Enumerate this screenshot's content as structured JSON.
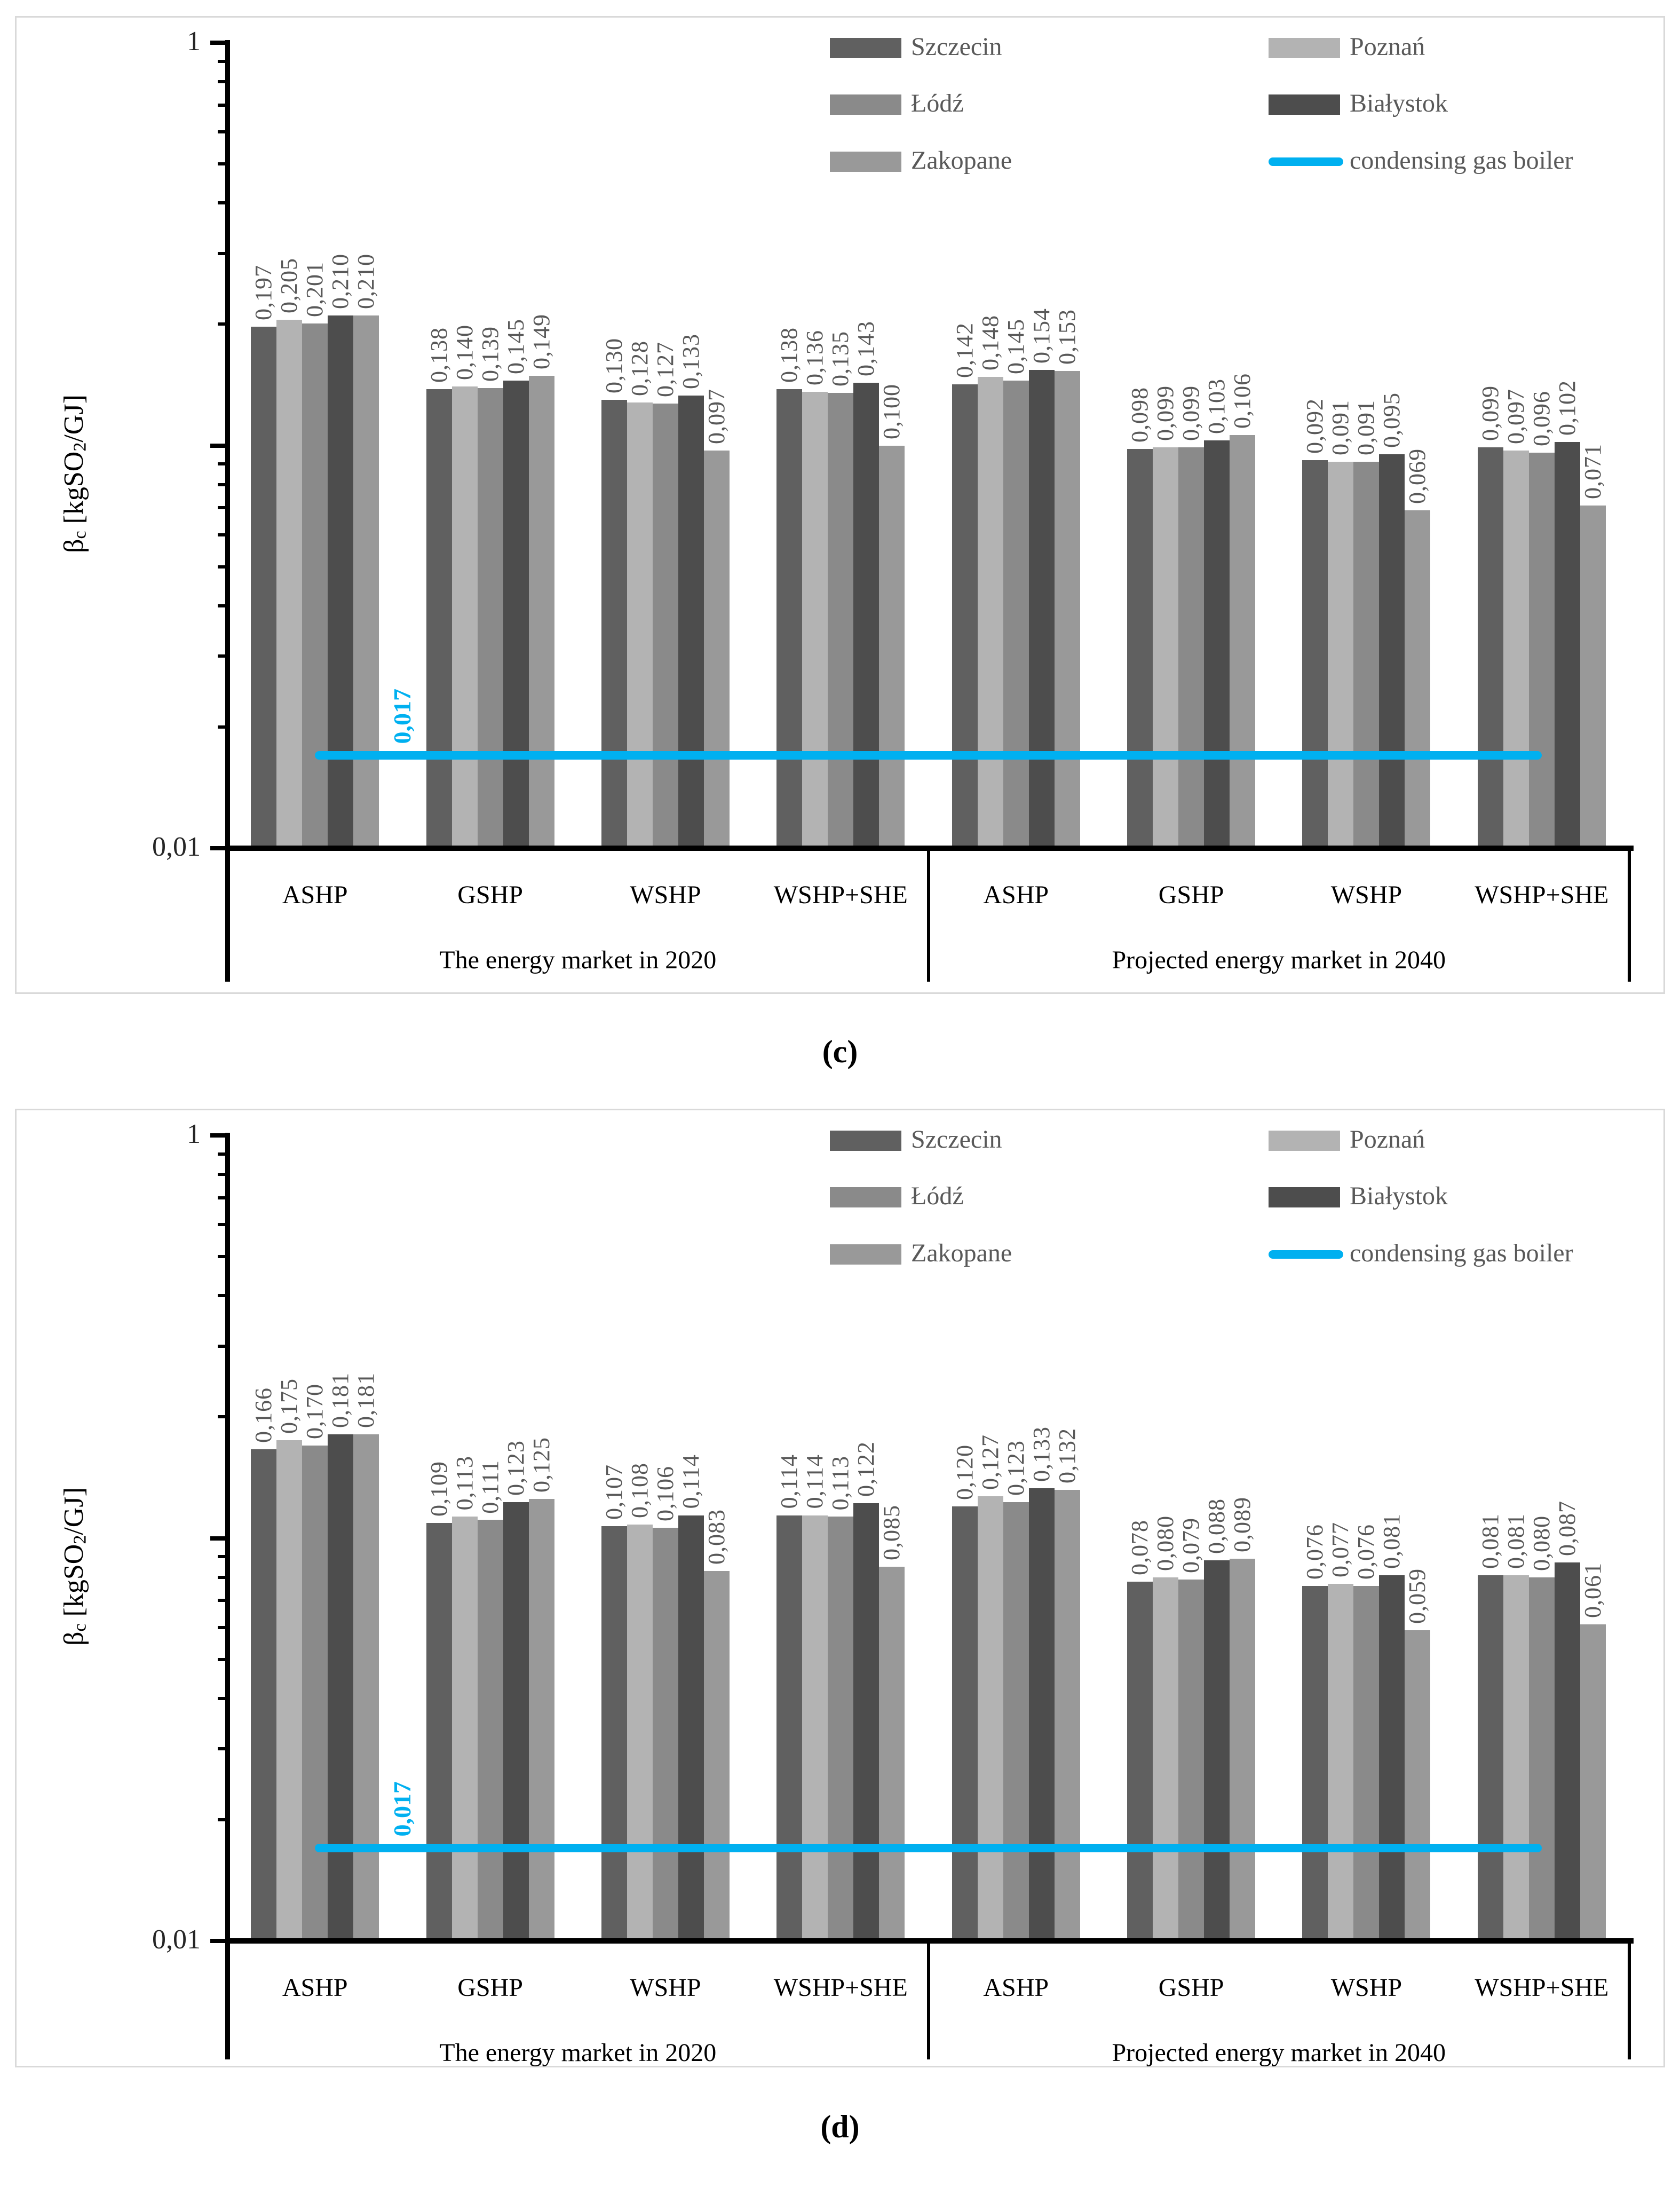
{
  "figure": {
    "captions": {
      "c": "(c)",
      "d": "(d)"
    },
    "y_axis": {
      "title_parts": {
        "beta": "β",
        "beta_sub": "c",
        "mid": " [kgSO",
        "so_sub": "2",
        "end": "/GJ]"
      },
      "top_label": "1",
      "bottom_label": "0,01"
    },
    "colors": {
      "szczecin": "#606060",
      "poznan": "#b3b3b3",
      "lodz": "#8a8a8a",
      "bialystok": "#4d4d4d",
      "zakopane": "#999999",
      "boiler_line": "#00b0f0",
      "data_label": "#595959",
      "panel_border": "#d9d9d9"
    }
  },
  "chart_data": [
    {
      "id": "c",
      "type": "bar",
      "y_scale": "log",
      "ylim": [
        0.01,
        1
      ],
      "ylabel": "βc [kgSO2/GJ]",
      "grid": false,
      "legend_position": "top-right-two-columns",
      "categories": [
        "ASHP",
        "GSHP",
        "WSHP",
        "WSHP+SHE",
        "ASHP",
        "GSHP",
        "WSHP",
        "WSHP+SHE"
      ],
      "group_labels": [
        "The energy market in 2020",
        "Projected energy market in 2040"
      ],
      "series": [
        {
          "name": "Szczecin",
          "color": "#606060",
          "values": [
            0.197,
            0.138,
            0.13,
            0.138,
            0.142,
            0.098,
            0.092,
            0.099
          ]
        },
        {
          "name": "Poznań",
          "color": "#b3b3b3",
          "values": [
            0.205,
            0.14,
            0.128,
            0.136,
            0.148,
            0.099,
            0.091,
            0.097
          ]
        },
        {
          "name": "Łódź",
          "color": "#8a8a8a",
          "values": [
            0.201,
            0.139,
            0.127,
            0.135,
            0.145,
            0.099,
            0.091,
            0.096
          ]
        },
        {
          "name": "Białystok",
          "color": "#4d4d4d",
          "values": [
            0.21,
            0.145,
            0.133,
            0.143,
            0.154,
            0.103,
            0.095,
            0.102
          ]
        },
        {
          "name": "Zakopane",
          "color": "#999999",
          "values": [
            0.21,
            0.149,
            0.097,
            0.1,
            0.153,
            0.106,
            0.069,
            0.071
          ]
        }
      ],
      "reference_line": {
        "name": "condensing gas boiler",
        "value": 0.017,
        "label": "0,017",
        "color": "#00b0f0"
      }
    },
    {
      "id": "d",
      "type": "bar",
      "y_scale": "log",
      "ylim": [
        0.01,
        1
      ],
      "ylabel": "βc [kgSO2/GJ]",
      "grid": false,
      "legend_position": "top-right-two-columns",
      "categories": [
        "ASHP",
        "GSHP",
        "WSHP",
        "WSHP+SHE",
        "ASHP",
        "GSHP",
        "WSHP",
        "WSHP+SHE"
      ],
      "group_labels": [
        "The energy market in 2020",
        "Projected energy market in 2040"
      ],
      "series": [
        {
          "name": "Szczecin",
          "color": "#606060",
          "values": [
            0.166,
            0.109,
            0.107,
            0.114,
            0.12,
            0.078,
            0.076,
            0.081
          ]
        },
        {
          "name": "Poznań",
          "color": "#b3b3b3",
          "values": [
            0.175,
            0.113,
            0.108,
            0.114,
            0.127,
            0.08,
            0.077,
            0.081
          ]
        },
        {
          "name": "Łódź",
          "color": "#8a8a8a",
          "values": [
            0.17,
            0.111,
            0.106,
            0.113,
            0.123,
            0.079,
            0.076,
            0.08
          ]
        },
        {
          "name": "Białystok",
          "color": "#4d4d4d",
          "values": [
            0.181,
            0.123,
            0.114,
            0.122,
            0.133,
            0.088,
            0.081,
            0.087
          ]
        },
        {
          "name": "Zakopane",
          "color": "#999999",
          "values": [
            0.181,
            0.125,
            0.083,
            0.085,
            0.132,
            0.089,
            0.059,
            0.061
          ]
        }
      ],
      "reference_line": {
        "name": "condensing gas boiler",
        "value": 0.017,
        "label": "0,017",
        "color": "#00b0f0"
      }
    }
  ]
}
